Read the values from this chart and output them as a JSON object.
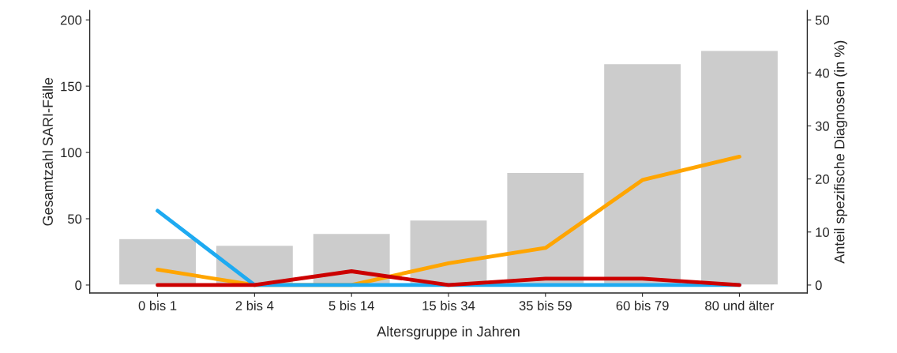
{
  "chart_data": {
    "type": "bar",
    "xlabel": "Altersgruppe in Jahren",
    "ylabel": "Gesamtzahl SARI-Fälle",
    "y2label": "Anteil spezifische Diagnosen (in %)",
    "categories": [
      "0 bis 1",
      "2 bis 4",
      "5 bis 14",
      "15 bis 34",
      "35 bis 59",
      "60 bis 79",
      "80 und älter"
    ],
    "ylim": [
      -6,
      207
    ],
    "yticks": [
      0,
      50,
      100,
      150,
      200
    ],
    "y2lim": [
      -1.5,
      51.75
    ],
    "y2ticks": [
      0,
      10,
      20,
      30,
      40,
      50
    ],
    "grid": false,
    "legend": false,
    "series": [
      {
        "color": "#cccccc",
        "values": [
          35,
          30,
          39,
          49,
          85,
          167,
          177
        ]
      },
      {
        "type": "line",
        "axis": "y2",
        "color": "#ffa500",
        "values": [
          2.9,
          0,
          0,
          4.1,
          7.0,
          19.8,
          24.2
        ]
      },
      {
        "type": "line",
        "axis": "y2",
        "color": "#1eaaf1",
        "values": [
          14.0,
          0,
          0,
          0,
          0,
          0,
          0
        ]
      },
      {
        "type": "line",
        "axis": "y2",
        "color": "#cc0000",
        "values": [
          0,
          0,
          2.6,
          0,
          1.2,
          1.2,
          0
        ]
      }
    ]
  }
}
